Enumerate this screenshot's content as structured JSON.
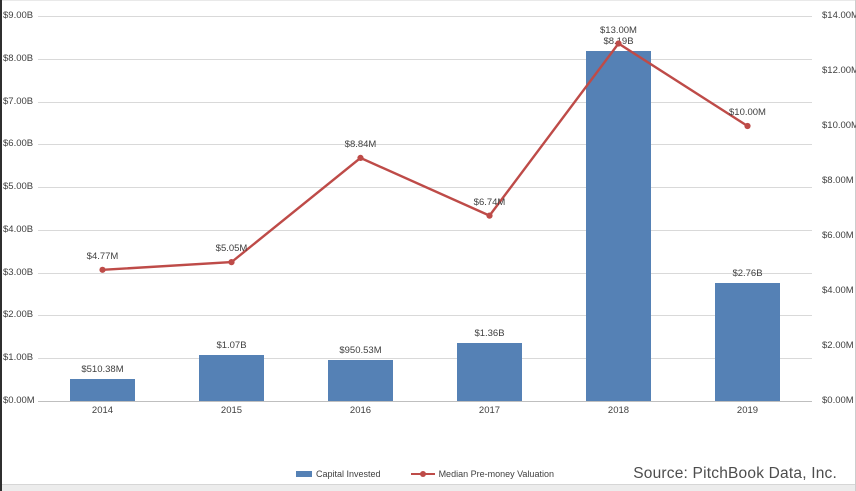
{
  "chart_data": {
    "type": "bar+line combo",
    "title": "",
    "categories": [
      "2014",
      "2015",
      "2016",
      "2017",
      "2018",
      "2019"
    ],
    "series": [
      {
        "name": "Capital Invested",
        "type": "bar",
        "axis": "left",
        "unit": "USD billions",
        "values": [
          0.51038,
          1.07,
          0.95053,
          1.36,
          8.19,
          2.76
        ],
        "labels": [
          "$510.38M",
          "$1.07B",
          "$950.53M",
          "$1.36B",
          "$8.19B",
          "$2.76B"
        ],
        "color": "#5581B5"
      },
      {
        "name": "Median Pre-money Valuation",
        "type": "line",
        "axis": "right",
        "unit": "USD millions",
        "values": [
          4.77,
          5.05,
          8.84,
          6.74,
          13.0,
          10.0
        ],
        "labels": [
          "$4.77M",
          "$5.05M",
          "$8.84M",
          "$6.74M",
          "$13.00M",
          "$10.00M"
        ],
        "color": "#BE4B48"
      }
    ],
    "left_axis": {
      "min": 0,
      "max": 9,
      "ticks": [
        {
          "value": 9,
          "label": "$9.00B"
        },
        {
          "value": 8,
          "label": "$8.00B"
        },
        {
          "value": 7,
          "label": "$7.00B"
        },
        {
          "value": 6,
          "label": "$6.00B"
        },
        {
          "value": 5,
          "label": "$5.00B"
        },
        {
          "value": 4,
          "label": "$4.00B"
        },
        {
          "value": 3,
          "label": "$3.00B"
        },
        {
          "value": 2,
          "label": "$2.00B"
        },
        {
          "value": 1,
          "label": "$1.00B"
        },
        {
          "value": 0,
          "label": "$0.00M"
        }
      ]
    },
    "right_axis": {
      "min": 0,
      "max": 14,
      "ticks": [
        {
          "value": 14,
          "label": "$14.00M"
        },
        {
          "value": 12,
          "label": "$12.00M"
        },
        {
          "value": 10,
          "label": "$10.00M"
        },
        {
          "value": 8,
          "label": "$8.00M"
        },
        {
          "value": 6,
          "label": "$6.00M"
        },
        {
          "value": 4,
          "label": "$4.00M"
        },
        {
          "value": 2,
          "label": "$2.00M"
        },
        {
          "value": 0,
          "label": "$0.00M"
        }
      ]
    },
    "grid": "horizontal major gridlines at $1.00B intervals",
    "legend_position": "bottom-center",
    "legend": [
      "Capital Invested",
      "Median Pre-money Valuation"
    ],
    "source": "Source: PitchBook Data, Inc.",
    "colors": {
      "bar": "#5581B5",
      "line": "#BE4B48",
      "gridline": "#d9d9d9",
      "axis_line": "#bfbfbf",
      "text": "#404040",
      "source_text": "#4d4d4d"
    }
  }
}
